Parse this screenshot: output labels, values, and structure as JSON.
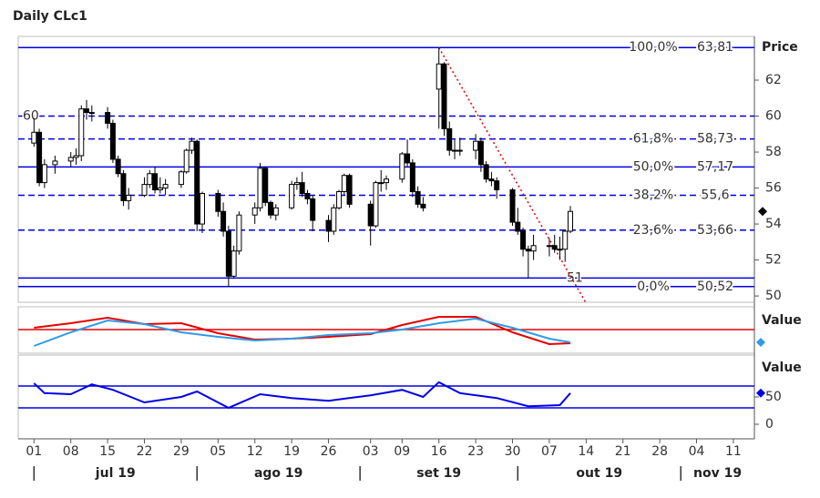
{
  "title": "Daily CLc1",
  "chart_data": [
    {
      "type": "candlestick",
      "y_label": "Price",
      "x": [
        "2019-07-01",
        "2019-07-02",
        "2019-07-03",
        "2019-07-05",
        "2019-07-08",
        "2019-07-09",
        "2019-07-10",
        "2019-07-11",
        "2019-07-12",
        "2019-07-15",
        "2019-07-16",
        "2019-07-17",
        "2019-07-18",
        "2019-07-19",
        "2019-07-22",
        "2019-07-23",
        "2019-07-24",
        "2019-07-25",
        "2019-07-26",
        "2019-07-29",
        "2019-07-30",
        "2019-07-31",
        "2019-08-01",
        "2019-08-02",
        "2019-08-05",
        "2019-08-06",
        "2019-08-07",
        "2019-08-08",
        "2019-08-09",
        "2019-08-12",
        "2019-08-13",
        "2019-08-14",
        "2019-08-15",
        "2019-08-16",
        "2019-08-19",
        "2019-08-20",
        "2019-08-21",
        "2019-08-22",
        "2019-08-23",
        "2019-08-26",
        "2019-08-27",
        "2019-08-28",
        "2019-08-29",
        "2019-08-30",
        "2019-09-03",
        "2019-09-04",
        "2019-09-05",
        "2019-09-06",
        "2019-09-09",
        "2019-09-10",
        "2019-09-11",
        "2019-09-12",
        "2019-09-13",
        "2019-09-16",
        "2019-09-17",
        "2019-09-18",
        "2019-09-19",
        "2019-09-20",
        "2019-09-23",
        "2019-09-24",
        "2019-09-25",
        "2019-09-26",
        "2019-09-27",
        "2019-09-30",
        "2019-10-01",
        "2019-10-02",
        "2019-10-03",
        "2019-10-04",
        "2019-10-07",
        "2019-10-08",
        "2019-10-09",
        "2019-10-10",
        "2019-10-11"
      ],
      "open": [
        58.5,
        59.1,
        56.3,
        57.3,
        57.5,
        57.7,
        57.8,
        60.4,
        60.2,
        60.2,
        59.6,
        57.6,
        56.8,
        55.3,
        55.6,
        56.2,
        56.8,
        55.9,
        56.0,
        56.2,
        56.9,
        58.1,
        58.6,
        54.0,
        55.7,
        54.7,
        53.6,
        51.1,
        52.5,
        54.5,
        54.9,
        57.1,
        55.2,
        54.5,
        54.9,
        56.2,
        56.3,
        55.7,
        55.4,
        54.2,
        53.6,
        54.9,
        55.8,
        56.7,
        55.1,
        53.9,
        56.3,
        56.3,
        56.5,
        57.9,
        57.4,
        55.8,
        55.1,
        61.5,
        62.9,
        59.3,
        58.1,
        58.1,
        58.1,
        58.6,
        57.3,
        56.5,
        56.4,
        55.9,
        54.1,
        53.6,
        52.6,
        52.5,
        52.8,
        52.8,
        52.6,
        52.6,
        53.6
      ],
      "high": [
        59.9,
        59.3,
        57.6,
        57.8,
        58.0,
        58.2,
        60.6,
        60.9,
        60.6,
        60.5,
        59.8,
        57.8,
        57.0,
        56.0,
        56.6,
        57.0,
        57.2,
        56.6,
        56.5,
        57.0,
        58.2,
        58.8,
        58.7,
        55.8,
        55.9,
        55.2,
        53.9,
        52.8,
        54.7,
        55.2,
        57.4,
        57.2,
        55.3,
        55.1,
        56.4,
        56.6,
        56.9,
        55.9,
        55.6,
        54.5,
        55.1,
        55.9,
        56.8,
        56.8,
        55.3,
        56.4,
        57.0,
        56.7,
        58.0,
        58.7,
        57.6,
        56.1,
        55.5,
        63.8,
        63.0,
        59.7,
        58.7,
        58.8,
        59.0,
        58.8,
        57.5,
        56.9,
        56.6,
        56.0,
        54.9,
        53.8,
        52.8,
        53.4,
        53.2,
        53.4,
        53.3,
        53.7,
        55.0
      ],
      "low": [
        58.3,
        56.1,
        56.0,
        56.8,
        57.2,
        57.3,
        57.5,
        59.8,
        59.7,
        59.3,
        57.4,
        56.6,
        55.0,
        54.8,
        55.5,
        56.0,
        55.7,
        55.7,
        55.6,
        56.0,
        56.8,
        57.9,
        53.6,
        53.5,
        54.4,
        53.3,
        50.5,
        51.0,
        52.3,
        54.0,
        54.7,
        55.0,
        54.3,
        54.2,
        54.8,
        55.9,
        55.5,
        55.1,
        53.6,
        53.0,
        53.4,
        54.8,
        55.6,
        54.9,
        52.8,
        53.8,
        55.8,
        55.9,
        56.3,
        57.2,
        55.5,
        54.9,
        54.7,
        59.3,
        58.9,
        57.8,
        57.6,
        57.8,
        57.6,
        56.9,
        56.3,
        56.1,
        55.4,
        53.9,
        53.4,
        52.2,
        51.0,
        52.0,
        52.2,
        52.4,
        52.0,
        51.9,
        53.5
      ],
      "close": [
        59.1,
        56.3,
        57.3,
        57.5,
        57.7,
        57.8,
        60.4,
        60.2,
        60.2,
        59.6,
        57.6,
        56.8,
        55.3,
        55.6,
        56.2,
        56.8,
        55.9,
        56.0,
        56.2,
        56.9,
        58.1,
        58.6,
        54.0,
        55.7,
        54.7,
        53.6,
        51.1,
        52.5,
        54.5,
        54.9,
        57.1,
        55.2,
        54.5,
        54.9,
        56.2,
        56.3,
        55.7,
        55.4,
        54.2,
        53.6,
        54.9,
        55.8,
        56.7,
        55.1,
        53.9,
        56.3,
        56.3,
        56.5,
        57.9,
        57.4,
        55.8,
        55.1,
        54.9,
        62.9,
        59.3,
        58.1,
        58.1,
        58.1,
        58.6,
        57.3,
        56.5,
        56.4,
        55.9,
        54.1,
        53.6,
        52.6,
        52.5,
        52.8,
        52.8,
        52.6,
        52.6,
        53.6,
        54.7
      ],
      "ylim": [
        49.65,
        64.43
      ],
      "yticks": [
        50,
        52,
        54,
        56,
        58,
        60,
        62
      ],
      "level_color": "#0000e6",
      "levels": [
        {
          "value": 63.81,
          "label": "63,81",
          "name": "100,0%",
          "style": "solid"
        },
        {
          "value": 60,
          "label": "60",
          "style": "dashed"
        },
        {
          "value": 58.73,
          "label": "58,73",
          "name": "61,8%",
          "style": "dashed"
        },
        {
          "value": 57.17,
          "label": "57,17",
          "name": "50,0%",
          "style": "solid"
        },
        {
          "value": 55.6,
          "label": "55,6",
          "name": "38,2%",
          "style": "dashed"
        },
        {
          "value": 53.66,
          "label": "53,66",
          "name": "23,6%",
          "style": "dashed"
        },
        {
          "value": 51,
          "label": "51",
          "style": "solid"
        },
        {
          "value": 50.52,
          "label": "50,52",
          "name": "0,0%",
          "style": "solid"
        }
      ],
      "trendline": {
        "x": [
          "2019-09-16",
          "2019-10-14"
        ],
        "y": [
          63.81,
          49.6
        ],
        "color": "#e00000"
      }
    },
    {
      "type": "line",
      "y_label": "Value",
      "ylim": [
        0,
        100
      ],
      "series": [
        {
          "color": "#e60000",
          "x": [
            "2019-07-01",
            "2019-07-08",
            "2019-07-15",
            "2019-07-22",
            "2019-07-29",
            "2019-08-05",
            "2019-08-12",
            "2019-08-19",
            "2019-08-26",
            "2019-09-03",
            "2019-09-09",
            "2019-09-16",
            "2019-09-23",
            "2019-09-30",
            "2019-10-07",
            "2019-10-11"
          ],
          "values": [
            56,
            66,
            78,
            64,
            66,
            44,
            30,
            32,
            36,
            42,
            62,
            80,
            80,
            46,
            20,
            22
          ]
        },
        {
          "color": "#2f9be6",
          "x": [
            "2019-07-01",
            "2019-07-08",
            "2019-07-15",
            "2019-07-22",
            "2019-07-29",
            "2019-08-05",
            "2019-08-12",
            "2019-08-19",
            "2019-08-26",
            "2019-09-03",
            "2019-09-09",
            "2019-09-16",
            "2019-09-23",
            "2019-09-30",
            "2019-10-07",
            "2019-10-11"
          ],
          "values": [
            16,
            46,
            72,
            64,
            46,
            36,
            28,
            32,
            40,
            44,
            52,
            66,
            76,
            56,
            32,
            24
          ]
        }
      ],
      "levels": [
        {
          "value": 52,
          "color": "#e60000"
        }
      ]
    },
    {
      "type": "line",
      "y_label": "Value",
      "ylim": [
        -26.7,
        126.7
      ],
      "yticks": [
        0,
        50
      ],
      "series": [
        {
          "color": "#0000e6",
          "x": [
            "2019-07-01",
            "2019-07-03",
            "2019-07-08",
            "2019-07-12",
            "2019-07-16",
            "2019-07-22",
            "2019-07-29",
            "2019-08-01",
            "2019-08-07",
            "2019-08-13",
            "2019-08-19",
            "2019-08-26",
            "2019-09-03",
            "2019-09-09",
            "2019-09-13",
            "2019-09-16",
            "2019-09-20",
            "2019-09-27",
            "2019-10-03",
            "2019-10-09",
            "2019-10-11"
          ],
          "values": [
            75,
            57,
            55,
            73,
            63,
            40,
            50,
            60,
            30,
            55,
            48,
            43,
            53,
            63,
            50,
            77,
            57,
            48,
            33,
            35,
            57
          ]
        }
      ],
      "levels": [
        {
          "value": 70,
          "color": "#0000e6"
        },
        {
          "value": 30,
          "color": "#0000e6"
        }
      ],
      "xlim": [
        "2019-06-28",
        "2019-11-15"
      ],
      "xticks": [
        {
          "value": "2019-07-01",
          "label": "01"
        },
        {
          "value": "2019-07-08",
          "label": "08"
        },
        {
          "value": "2019-07-15",
          "label": "15"
        },
        {
          "value": "2019-07-22",
          "label": "22"
        },
        {
          "value": "2019-07-29",
          "label": "29"
        },
        {
          "value": "2019-08-05",
          "label": "05"
        },
        {
          "value": "2019-08-12",
          "label": "12"
        },
        {
          "value": "2019-08-19",
          "label": "19"
        },
        {
          "value": "2019-08-26",
          "label": "26"
        },
        {
          "value": "2019-09-03",
          "label": "03"
        },
        {
          "value": "2019-09-09",
          "label": "09"
        },
        {
          "value": "2019-09-16",
          "label": "16"
        },
        {
          "value": "2019-09-23",
          "label": "23"
        },
        {
          "value": "2019-09-30",
          "label": "30"
        },
        {
          "value": "2019-10-07",
          "label": "07"
        },
        {
          "value": "2019-10-14",
          "label": "14"
        },
        {
          "value": "2019-10-21",
          "label": "21"
        },
        {
          "value": "2019-10-28",
          "label": "28"
        },
        {
          "value": "2019-11-04",
          "label": "04"
        },
        {
          "value": "2019-11-11",
          "label": "11"
        }
      ],
      "months": [
        {
          "value": "2019-07-01",
          "label": "jul 19"
        },
        {
          "value": "2019-08-01",
          "label": "ago 19"
        },
        {
          "value": "2019-09-01",
          "label": "set 19"
        },
        {
          "value": "2019-10-01",
          "label": "out 19"
        },
        {
          "value": "2019-11-01",
          "label": "nov 19"
        }
      ]
    }
  ]
}
